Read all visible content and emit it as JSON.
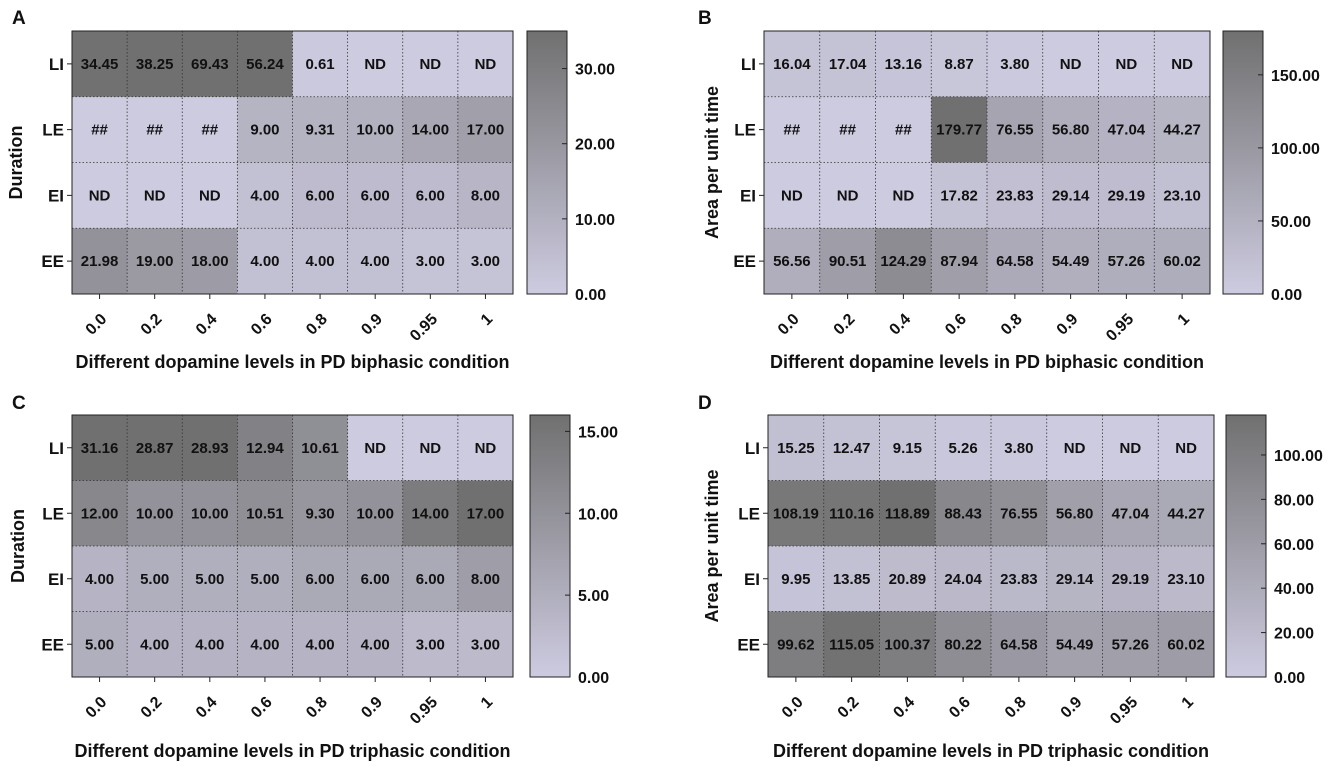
{
  "chart_data": [
    {
      "panel_label": "A",
      "type": "heatmap",
      "ylabel": "Duration",
      "xlabel": "Different dopamine levels in PD biphasic condition",
      "categories": [
        "0.0",
        "0.2",
        "0.4",
        "0.6",
        "0.8",
        "0.9",
        "0.95",
        "1"
      ],
      "rows": [
        "LI",
        "LE",
        "EI",
        "EE"
      ],
      "cells": [
        [
          "34.45",
          "38.25",
          "69.43",
          "56.24",
          "0.61",
          "ND",
          "ND",
          "ND"
        ],
        [
          "##",
          "##",
          "##",
          "9.00",
          "9.31",
          "10.00",
          "14.00",
          "17.00"
        ],
        [
          "ND",
          "ND",
          "ND",
          "4.00",
          "6.00",
          "6.00",
          "6.00",
          "8.00"
        ],
        [
          "21.98",
          "19.00",
          "18.00",
          "4.00",
          "4.00",
          "4.00",
          "3.00",
          "3.00"
        ]
      ],
      "color_range": [
        0,
        35
      ],
      "colorbar_ticks": [
        "0.00",
        "10.00",
        "20.00",
        "30.00"
      ],
      "colormap": [
        "#cdcbe0",
        "#707070"
      ]
    },
    {
      "panel_label": "B",
      "type": "heatmap",
      "ylabel": "Area per unit time",
      "xlabel": "Different dopamine levels in PD biphasic condition",
      "categories": [
        "0.0",
        "0.2",
        "0.4",
        "0.6",
        "0.8",
        "0.9",
        "0.95",
        "1"
      ],
      "rows": [
        "LI",
        "LE",
        "EI",
        "EE"
      ],
      "cells": [
        [
          "16.04",
          "17.04",
          "13.16",
          "8.87",
          "3.80",
          "ND",
          "ND",
          "ND"
        ],
        [
          "##",
          "##",
          "##",
          "179.77",
          "76.55",
          "56.80",
          "47.04",
          "44.27"
        ],
        [
          "ND",
          "ND",
          "ND",
          "17.82",
          "23.83",
          "29.14",
          "29.19",
          "23.10"
        ],
        [
          "56.56",
          "90.51",
          "124.29",
          "87.94",
          "64.58",
          "54.49",
          "57.26",
          "60.02"
        ]
      ],
      "color_range": [
        0,
        180
      ],
      "colorbar_ticks": [
        "0.00",
        "50.00",
        "100.00",
        "150.00"
      ],
      "colormap": [
        "#cdcbe0",
        "#707070"
      ]
    },
    {
      "panel_label": "C",
      "type": "heatmap",
      "ylabel": "Duration",
      "xlabel": "Different dopamine levels in PD triphasic condition",
      "categories": [
        "0.0",
        "0.2",
        "0.4",
        "0.6",
        "0.8",
        "0.9",
        "0.95",
        "1"
      ],
      "rows": [
        "LI",
        "LE",
        "EI",
        "EE"
      ],
      "cells": [
        [
          "31.16",
          "28.87",
          "28.93",
          "12.94",
          "10.61",
          "ND",
          "ND",
          "ND"
        ],
        [
          "12.00",
          "10.00",
          "10.00",
          "10.51",
          "9.30",
          "10.00",
          "14.00",
          "17.00"
        ],
        [
          "4.00",
          "5.00",
          "5.00",
          "5.00",
          "6.00",
          "6.00",
          "6.00",
          "8.00"
        ],
        [
          "5.00",
          "4.00",
          "4.00",
          "4.00",
          "4.00",
          "4.00",
          "3.00",
          "3.00"
        ]
      ],
      "color_range": [
        0,
        16
      ],
      "colorbar_ticks": [
        "0.00",
        "5.00",
        "10.00",
        "15.00"
      ],
      "colormap": [
        "#cdcbe0",
        "#707070"
      ]
    },
    {
      "panel_label": "D",
      "type": "heatmap",
      "ylabel": "Area per unit time",
      "xlabel": "Different dopamine levels in PD triphasic condition",
      "categories": [
        "0.0",
        "0.2",
        "0.4",
        "0.6",
        "0.8",
        "0.9",
        "0.95",
        "1"
      ],
      "rows": [
        "LI",
        "LE",
        "EI",
        "EE"
      ],
      "cells": [
        [
          "15.25",
          "12.47",
          "9.15",
          "5.26",
          "3.80",
          "ND",
          "ND",
          "ND"
        ],
        [
          "108.19",
          "110.16",
          "118.89",
          "88.43",
          "76.55",
          "56.80",
          "47.04",
          "44.27"
        ],
        [
          "9.95",
          "13.85",
          "20.89",
          "24.04",
          "23.83",
          "29.14",
          "29.19",
          "23.10"
        ],
        [
          "99.62",
          "115.05",
          "100.37",
          "80.22",
          "64.58",
          "54.49",
          "57.26",
          "60.02"
        ]
      ],
      "color_range": [
        0,
        118
      ],
      "colorbar_ticks": [
        "0.00",
        "20.00",
        "40.00",
        "60.00",
        "80.00",
        "100.00"
      ],
      "colormap": [
        "#cdcbe0",
        "#707070"
      ]
    }
  ]
}
